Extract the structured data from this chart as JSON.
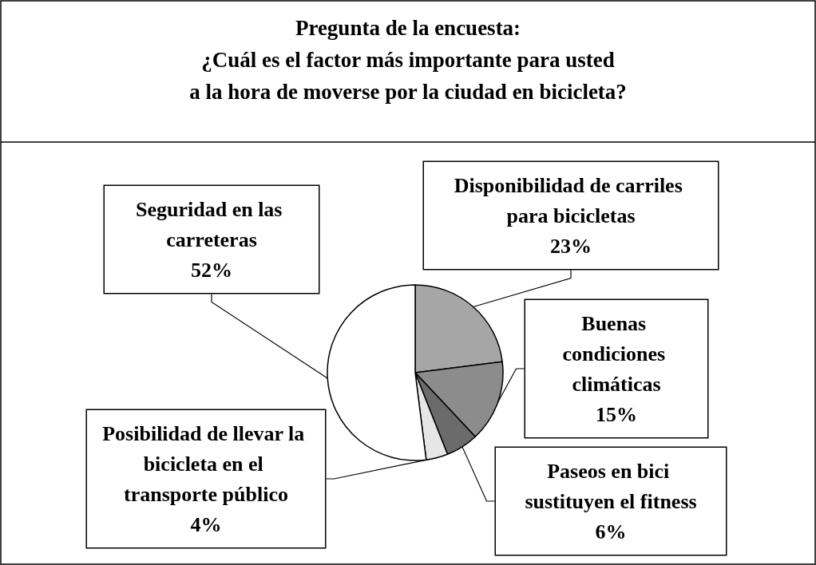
{
  "chart_data": {
    "type": "pie",
    "title": "Pregunta de la encuesta:\n¿Cuál es el factor más importante para usted\na la hora de moverse por la ciudad en bicicleta?",
    "categories": [
      "Disponibilidad de carriles para bicicletas",
      "Buenas condiciones climáticas",
      "Paseos en bici sustituyen el fitness",
      "Posibilidad de llevar la bicicleta en el transporte público",
      "Seguridad en las carreteras"
    ],
    "values": [
      23,
      15,
      6,
      4,
      52
    ],
    "value_labels": [
      "23%",
      "15%",
      "6%",
      "4%",
      "52%"
    ],
    "colors": [
      "#a6a6a6",
      "#8c8c8c",
      "#6b6b6b",
      "#e6e6e6",
      "#ffffff"
    ],
    "legend": false
  }
}
